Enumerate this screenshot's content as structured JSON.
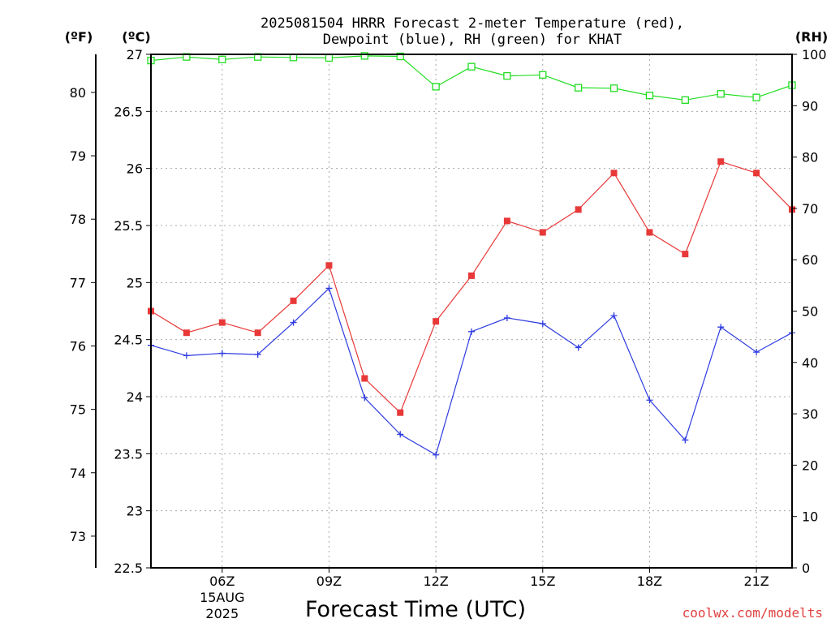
{
  "chart_data": {
    "type": "line",
    "title_lines": [
      "2025081504 HRRR Forecast 2-meter Temperature (red),",
      "Dewpoint (blue), RH (green) for KHAT"
    ],
    "xlabel": "Forecast Time (UTC)",
    "x": [
      "04Z",
      "05Z",
      "06Z",
      "07Z",
      "08Z",
      "09Z",
      "10Z",
      "11Z",
      "12Z",
      "13Z",
      "14Z",
      "15Z",
      "16Z",
      "17Z",
      "18Z",
      "19Z",
      "20Z",
      "21Z",
      "22Z"
    ],
    "xlim_hours": [
      4,
      22
    ],
    "x_ticks": [
      {
        "hour": 6,
        "label": "06Z",
        "sub": [
          "15AUG",
          "2025"
        ]
      },
      {
        "hour": 9,
        "label": "09Z"
      },
      {
        "hour": 12,
        "label": "12Z"
      },
      {
        "hour": 15,
        "label": "15Z"
      },
      {
        "hour": 18,
        "label": "18Z"
      },
      {
        "hour": 21,
        "label": "21Z"
      }
    ],
    "y_celsius": {
      "unit_label": "(ºC)",
      "range": [
        22.5,
        27
      ],
      "ticks": [
        "22.5",
        "23",
        "23.5",
        "24",
        "24.5",
        "25",
        "25.5",
        "26",
        "26.5",
        "27"
      ]
    },
    "y_fahrenheit": {
      "unit_label": "(ºF)",
      "ticks": [
        "73",
        "74",
        "75",
        "76",
        "77",
        "78",
        "79",
        "80"
      ]
    },
    "y_rh": {
      "unit_label": "(RH)",
      "range": [
        0,
        100
      ],
      "ticks": [
        "0",
        "10",
        "20",
        "30",
        "40",
        "50",
        "60",
        "70",
        "80",
        "90",
        "100"
      ]
    },
    "series": [
      {
        "name": "Temperature",
        "color": "#e83838",
        "marker": "filled-square",
        "axis": "celsius",
        "values": [
          24.75,
          24.56,
          24.65,
          24.56,
          24.84,
          25.15,
          24.16,
          23.86,
          24.66,
          25.06,
          25.54,
          25.44,
          25.64,
          25.96,
          25.44,
          25.25,
          26.06,
          25.96,
          25.64
        ]
      },
      {
        "name": "Dewpoint",
        "color": "#2e3ce0",
        "marker": "plus",
        "axis": "celsius",
        "values": [
          24.45,
          24.36,
          24.38,
          24.37,
          24.65,
          24.95,
          23.99,
          23.67,
          23.49,
          24.57,
          24.69,
          24.64,
          24.43,
          24.71,
          23.97,
          23.62,
          24.61,
          24.39,
          24.56
        ]
      },
      {
        "name": "RH",
        "color": "#22dd22",
        "marker": "open-square",
        "axis": "rh",
        "values": [
          98.8,
          99.5,
          99.0,
          99.5,
          99.4,
          99.3,
          99.7,
          99.6,
          93.7,
          97.6,
          95.8,
          96.0,
          93.5,
          93.4,
          92.0,
          91.1,
          92.3,
          91.6,
          94.0
        ]
      }
    ],
    "credit": "coolwx.com/modelts"
  }
}
